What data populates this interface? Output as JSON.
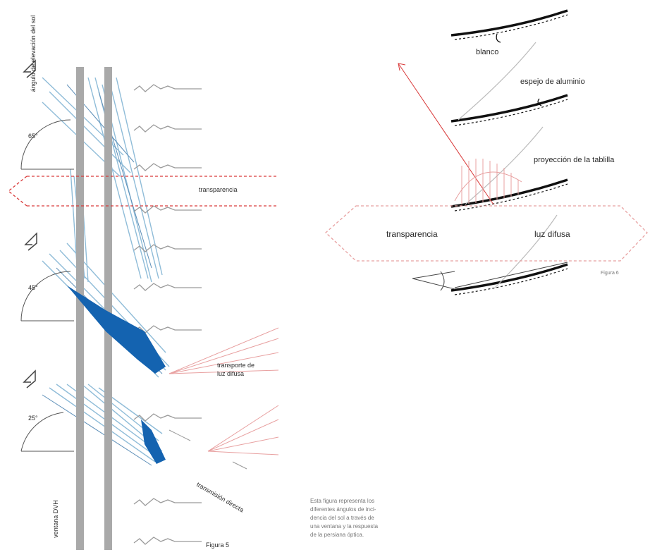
{
  "left_figure": {
    "vertical_title": "ángulo de elevación del sol",
    "angles": [
      "65°",
      "45°",
      "25°"
    ],
    "transparency_label": "transparencia",
    "diffuse_transport": [
      "transporte de",
      "luz difusa"
    ],
    "direct_transmission": "transmisión directa",
    "window_label": "ventana DVH",
    "figure_label": "Figura 5",
    "colors": {
      "glass": "#a9a9a9",
      "blade": "#1463b0",
      "ray": "#7fb4d6",
      "arrow": "#d93a3a",
      "reflect": "#e8a0a0"
    }
  },
  "right_figure": {
    "labels": {
      "blanco": "blanco",
      "espejo": "espejo de aluminio",
      "proyeccion": "proyección de la tablilla",
      "transparencia": "transparencia",
      "luz_difusa": "luz difusa",
      "figure_label": "Figura 6"
    }
  },
  "caption": [
    "Esta figura representa los",
    "diferentes ángulos de inci-",
    "dencia del sol a través de",
    "una ventana y la respuesta",
    "de la persiana óptica."
  ]
}
